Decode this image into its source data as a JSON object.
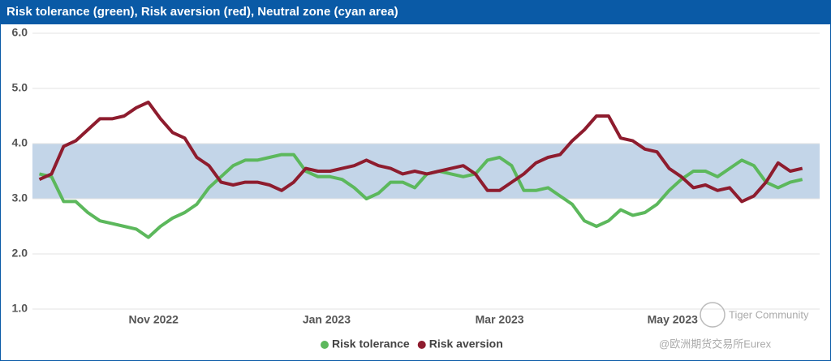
{
  "chart_data": {
    "type": "line",
    "title": "Risk tolerance (green), Risk aversion (red), Neutral zone (cyan area)",
    "x": [
      0.68,
      0.82,
      0.96,
      1.1,
      1.24,
      1.38,
      1.52,
      1.66,
      1.8,
      1.94,
      2.08,
      2.22,
      2.36,
      2.5,
      2.64,
      2.78,
      2.92,
      3.06,
      3.2,
      3.34,
      3.48,
      3.62,
      3.76,
      3.9,
      4.04,
      4.18,
      4.32,
      4.46,
      4.6,
      4.74,
      4.88,
      5.02,
      5.16,
      5.3,
      5.44,
      5.58,
      5.72,
      5.86,
      6.0,
      6.14,
      6.28,
      6.42,
      6.56,
      6.7,
      6.84,
      6.98,
      7.12,
      7.26,
      7.4,
      7.54,
      7.68,
      7.82,
      7.96,
      8.1,
      8.24,
      8.38,
      8.52,
      8.66,
      8.8,
      8.94,
      9.08,
      9.22,
      9.36,
      9.5
    ],
    "series": [
      {
        "name": "Risk tolerance",
        "color": "#5cb85c",
        "values": [
          3.45,
          3.4,
          2.95,
          2.95,
          2.75,
          2.6,
          2.55,
          2.5,
          2.45,
          2.3,
          2.5,
          2.65,
          2.75,
          2.9,
          3.2,
          3.4,
          3.6,
          3.7,
          3.7,
          3.75,
          3.8,
          3.8,
          3.5,
          3.4,
          3.4,
          3.35,
          3.2,
          3.0,
          3.1,
          3.3,
          3.3,
          3.2,
          3.45,
          3.5,
          3.45,
          3.4,
          3.45,
          3.7,
          3.75,
          3.6,
          3.15,
          3.15,
          3.2,
          3.05,
          2.9,
          2.6,
          2.5,
          2.6,
          2.8,
          2.7,
          2.75,
          2.9,
          3.15,
          3.35,
          3.5,
          3.5,
          3.4,
          3.55,
          3.7,
          3.6,
          3.3,
          3.2,
          3.3,
          3.35
        ]
      },
      {
        "name": "Risk aversion",
        "color": "#8e1c2e",
        "values": [
          3.35,
          3.45,
          3.95,
          4.05,
          4.25,
          4.45,
          4.45,
          4.5,
          4.65,
          4.75,
          4.45,
          4.2,
          4.1,
          3.75,
          3.6,
          3.3,
          3.25,
          3.3,
          3.3,
          3.25,
          3.15,
          3.3,
          3.55,
          3.5,
          3.5,
          3.55,
          3.6,
          3.7,
          3.6,
          3.55,
          3.45,
          3.5,
          3.45,
          3.5,
          3.55,
          3.6,
          3.45,
          3.15,
          3.15,
          3.3,
          3.45,
          3.65,
          3.75,
          3.8,
          4.05,
          4.25,
          4.5,
          4.5,
          4.1,
          4.05,
          3.9,
          3.85,
          3.55,
          3.4,
          3.2,
          3.25,
          3.15,
          3.2,
          2.95,
          3.05,
          3.3,
          3.65,
          3.5,
          3.55
        ]
      }
    ],
    "bands": [
      {
        "from": 3,
        "to": 4,
        "color": "#c3d5e8"
      }
    ],
    "xlim": [
      0.6,
      9.7
    ],
    "xticks": [
      {
        "value": 2,
        "label": "Nov 2022"
      },
      {
        "value": 4,
        "label": "Jan 2023"
      },
      {
        "value": 6,
        "label": "Mar 2023"
      },
      {
        "value": 8,
        "label": "May 2023"
      }
    ],
    "ylim": [
      1,
      6
    ],
    "yticks": [
      {
        "value": 1,
        "label": "1.0"
      },
      {
        "value": 2,
        "label": "2.0"
      },
      {
        "value": 3,
        "label": "3.0"
      },
      {
        "value": 4,
        "label": "4.0"
      },
      {
        "value": 5,
        "label": "5.0"
      },
      {
        "value": 6,
        "label": "6.0"
      }
    ],
    "grid": true,
    "legend": "bottom",
    "annotations": [
      "Tiger Community",
      "@欧洲期货交易所Eurex"
    ]
  }
}
